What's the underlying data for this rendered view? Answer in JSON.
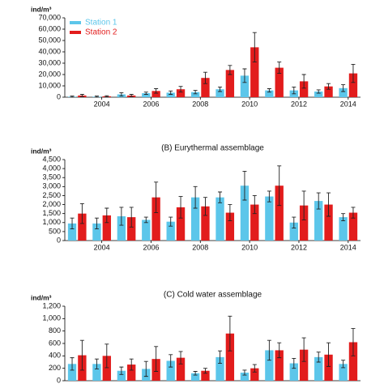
{
  "chart_data": [
    {
      "type": "bar",
      "ylabel": "ind/m³",
      "categories": [
        null,
        "2004",
        null,
        "2006",
        null,
        "2008",
        null,
        "2010",
        null,
        "2012",
        null,
        "2014"
      ],
      "series": [
        {
          "name": "Station 1",
          "color": "#5cc6ea",
          "values": [
            500,
            500,
            2500,
            3500,
            4000,
            4500,
            7000,
            19000,
            6000,
            6000,
            5000,
            8000
          ],
          "errors": [
            500,
            500,
            1500,
            1000,
            1500,
            1500,
            2000,
            6000,
            1500,
            3000,
            1500,
            3000
          ]
        },
        {
          "name": "Station 2",
          "color": "#e21c1c",
          "values": [
            1500,
            800,
            1500,
            5500,
            7000,
            17000,
            24000,
            44000,
            26000,
            14000,
            9500,
            21000
          ],
          "errors": [
            1000,
            500,
            1000,
            2000,
            2500,
            5000,
            4000,
            13000,
            5000,
            6000,
            2500,
            8000
          ]
        }
      ],
      "ylim": [
        0,
        70000
      ],
      "yticks": [
        0,
        {
          "value": 10000,
          "label": "10,000"
        },
        {
          "value": 20000,
          "label": "20,000"
        },
        {
          "value": 30000,
          "label": "30,000"
        },
        {
          "value": 40000,
          "label": "40,000"
        },
        {
          "value": 50000,
          "label": "50,000"
        },
        {
          "value": 60000,
          "label": "60,000"
        },
        {
          "value": 70000,
          "label": "70,000"
        }
      ],
      "legend": "upper left"
    },
    {
      "type": "bar",
      "title": "(B) Eurythermal assemblage",
      "ylabel": "ind/m³",
      "categories": [
        null,
        "2004",
        null,
        "2006",
        null,
        "2008",
        null,
        "2010",
        null,
        "2012",
        null,
        "2014"
      ],
      "series": [
        {
          "color": "#5cc6ea",
          "values": [
            950,
            950,
            1350,
            1150,
            1050,
            2400,
            2400,
            3050,
            2450,
            1000,
            2200,
            1300
          ],
          "errors": [
            300,
            300,
            500,
            150,
            250,
            600,
            300,
            800,
            300,
            300,
            450,
            200
          ]
        },
        {
          "color": "#e21c1c",
          "values": [
            1500,
            1400,
            1300,
            2400,
            1850,
            1900,
            1550,
            2000,
            3050,
            1950,
            2000,
            1550
          ],
          "errors": [
            550,
            400,
            550,
            850,
            600,
            500,
            450,
            500,
            1100,
            800,
            650,
            300
          ]
        }
      ],
      "ylim": [
        0,
        4500
      ],
      "yticks": [
        0,
        500,
        {
          "value": 1000,
          "label": "1,000"
        },
        {
          "value": 1500,
          "label": "1,500"
        },
        {
          "value": 2000,
          "label": "2,000"
        },
        {
          "value": 2500,
          "label": "2,500"
        },
        {
          "value": 3000,
          "label": "3,000"
        },
        {
          "value": 3500,
          "label": "3,500"
        },
        {
          "value": 4000,
          "label": "4,000"
        },
        {
          "value": 4500,
          "label": "4,500"
        }
      ]
    },
    {
      "type": "bar",
      "title": "(C) Cold water assemblage",
      "ylabel": "ind/m³",
      "categories": [
        null,
        null,
        null,
        null,
        null,
        null,
        null,
        null,
        null,
        null,
        null,
        null
      ],
      "series": [
        {
          "color": "#5cc6ea",
          "values": [
            270,
            270,
            160,
            190,
            320,
            120,
            380,
            130,
            490,
            280,
            380,
            270
          ],
          "errors": [
            100,
            80,
            60,
            120,
            100,
            30,
            100,
            40,
            160,
            80,
            80,
            60
          ]
        },
        {
          "color": "#e21c1c",
          "values": [
            410,
            400,
            260,
            350,
            370,
            160,
            760,
            200,
            490,
            500,
            420,
            620
          ],
          "errors": [
            240,
            190,
            90,
            200,
            100,
            40,
            280,
            60,
            120,
            190,
            190,
            220
          ]
        }
      ],
      "ylim": [
        0,
        1200
      ],
      "yticks": [
        0,
        200,
        400,
        600,
        800,
        {
          "value": 1000,
          "label": "1,000"
        },
        {
          "value": 1200,
          "label": "1,200"
        }
      ]
    }
  ]
}
